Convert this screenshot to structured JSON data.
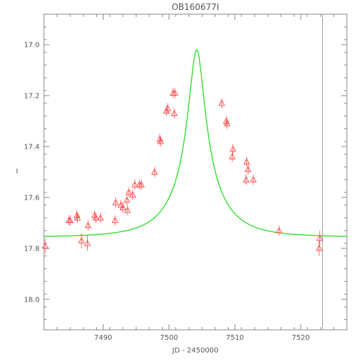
{
  "chart_data": {
    "type": "scatter",
    "title": "OB160677I",
    "xlabel": "JD - 2450000",
    "ylabel": "I",
    "xlim": [
      7481,
      7527
    ],
    "ylim": [
      18.12,
      16.88
    ],
    "y_inverted": true,
    "grid": false,
    "x_ticks": [
      7490,
      7500,
      7510,
      7520
    ],
    "x_tick_labels": [
      "7490",
      "7500",
      "7510",
      "7520"
    ],
    "y_ticks": [
      17.0,
      17.2,
      17.4,
      17.6,
      17.8,
      18.0
    ],
    "y_tick_labels": [
      "17.0",
      "17.2",
      "17.4",
      "17.6",
      "17.8",
      "18.0"
    ],
    "colors": {
      "points": "#ff4444",
      "model": "#22dd22",
      "axes": "#888888",
      "vline": "#999999"
    },
    "series": [
      {
        "kind": "points",
        "marker": "triangle-open",
        "x": [
          7481.2,
          7484.8,
          7485.0,
          7486.0,
          7486.1,
          7486.7,
          7487.6,
          7487.7,
          7488.7,
          7488.9,
          7489.6,
          7491.8,
          7491.9,
          7492.7,
          7493.0,
          7493.6,
          7493.7,
          7493.9,
          7494.5,
          7494.8,
          7495.5,
          7495.8,
          7497.8,
          7498.6,
          7498.7,
          7499.6,
          7499.8,
          7500.6,
          7500.8,
          7500.9,
          7508.0,
          7508.7,
          7508.8,
          7509.6,
          7509.7,
          7511.7,
          7511.8,
          7512.0,
          7512.8,
          7516.7,
          7522.8,
          7522.9
        ],
        "y": [
          17.79,
          17.69,
          17.69,
          17.67,
          17.68,
          17.77,
          17.78,
          17.71,
          17.67,
          17.68,
          17.68,
          17.69,
          17.62,
          17.63,
          17.64,
          17.61,
          17.65,
          17.58,
          17.59,
          17.55,
          17.55,
          17.55,
          17.5,
          17.37,
          17.38,
          17.26,
          17.25,
          17.19,
          17.27,
          17.19,
          17.23,
          17.3,
          17.31,
          17.44,
          17.41,
          17.53,
          17.46,
          17.49,
          17.53,
          17.73,
          17.8,
          17.76
        ],
        "yerr": [
          0.03,
          0.02,
          0.02,
          0.02,
          0.02,
          0.03,
          0.03,
          0.02,
          0.02,
          0.02,
          0.02,
          0.02,
          0.02,
          0.02,
          0.02,
          0.02,
          0.02,
          0.02,
          0.02,
          0.02,
          0.02,
          0.02,
          0.02,
          0.02,
          0.02,
          0.02,
          0.02,
          0.02,
          0.02,
          0.02,
          0.02,
          0.02,
          0.02,
          0.02,
          0.02,
          0.02,
          0.02,
          0.02,
          0.02,
          0.02,
          0.03,
          0.03
        ]
      },
      {
        "kind": "model",
        "model": "paczynski",
        "t0": 7504.2,
        "tE": 7.0,
        "u0": 0.16,
        "baseline_mag": 17.755,
        "peak_mag": 17.02
      }
    ],
    "vertical_line_x": 7523.3
  }
}
